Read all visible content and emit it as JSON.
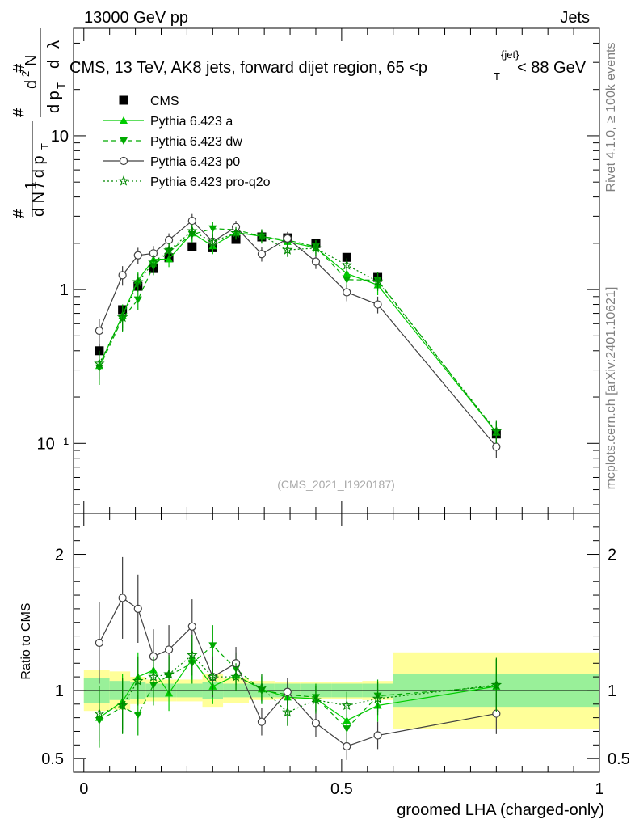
{
  "header": {
    "left": "13000 GeV pp",
    "right": "Jets",
    "side_top": "Rivet 4.1.0, ≥ 100k events",
    "side_bottom": "mcplots.cern.ch [arXiv:2401.10621]",
    "watermark": "(CMS_2021_I1920187)"
  },
  "chart_data": [
    {
      "type": "line",
      "title": "CMS, 13 TeV, AK8 jets, forward dijet region, 65 <p_T^{jet}< 88 GeV",
      "ylabel": "1/(dN/dp_T) d²N/(dp_T dλ)",
      "xlabel": "groomed LHA (charged-only)",
      "yscale": "log",
      "ylim": [
        0.035,
        50
      ],
      "xlim": [
        -0.02,
        1.0
      ],
      "ytick_labels": [
        "10⁻¹",
        "1",
        "10"
      ],
      "x": [
        0.03,
        0.075,
        0.105,
        0.135,
        0.165,
        0.21,
        0.25,
        0.295,
        0.345,
        0.395,
        0.45,
        0.51,
        0.57,
        0.8
      ],
      "series": [
        {
          "name": "CMS",
          "marker": "filled-square",
          "color": "#000000",
          "values": [
            0.4,
            0.74,
            1.05,
            1.37,
            1.61,
            1.9,
            1.87,
            2.12,
            2.2,
            2.17,
            1.99,
            1.62,
            1.2,
            0.115
          ],
          "errors": [
            0.04,
            0.06,
            0.08,
            0.1,
            0.1,
            0.12,
            0.12,
            0.12,
            0.12,
            0.12,
            0.12,
            0.1,
            0.1,
            0.01
          ]
        },
        {
          "name": "Pythia 6.423 a",
          "marker": "triangle-up",
          "color": "#00cc00",
          "linestyle": "solid",
          "values": [
            0.32,
            0.68,
            1.15,
            1.57,
            1.58,
            2.33,
            1.92,
            2.35,
            2.22,
            2.05,
            1.87,
            1.27,
            1.07,
            0.118
          ],
          "errors": [
            0.07,
            0.12,
            0.15,
            0.18,
            0.18,
            0.25,
            0.22,
            0.22,
            0.22,
            0.2,
            0.2,
            0.15,
            0.15,
            0.02
          ]
        },
        {
          "name": "Pythia 6.423 dw",
          "marker": "triangle-down",
          "color": "#00aa00",
          "linestyle": "dashed",
          "values": [
            0.31,
            0.65,
            0.86,
            1.42,
            1.78,
            2.28,
            2.49,
            2.45,
            2.21,
            2.1,
            1.9,
            1.16,
            1.15,
            0.118
          ],
          "errors": [
            0.07,
            0.12,
            0.12,
            0.18,
            0.2,
            0.25,
            0.25,
            0.25,
            0.22,
            0.2,
            0.2,
            0.15,
            0.15,
            0.02
          ]
        },
        {
          "name": "Pythia 6.423 p0",
          "marker": "open-circle",
          "color": "#404040",
          "linestyle": "solid",
          "values": [
            0.54,
            1.24,
            1.67,
            1.72,
            2.1,
            2.8,
            2.05,
            2.55,
            1.7,
            2.15,
            1.52,
            0.96,
            0.8,
            0.095
          ],
          "errors": [
            0.1,
            0.18,
            0.2,
            0.2,
            0.22,
            0.3,
            0.22,
            0.25,
            0.18,
            0.22,
            0.16,
            0.12,
            0.1,
            0.015
          ]
        },
        {
          "name": "Pythia 6.423 pro-q2o",
          "marker": "star",
          "color": "#008800",
          "linestyle": "dotted",
          "values": [
            0.33,
            0.66,
            1.12,
            1.5,
            1.8,
            2.4,
            2.05,
            2.33,
            2.25,
            1.81,
            1.86,
            1.44,
            1.13,
            0.12
          ],
          "errors": [
            0.07,
            0.12,
            0.15,
            0.18,
            0.2,
            0.25,
            0.22,
            0.22,
            0.22,
            0.18,
            0.2,
            0.16,
            0.15,
            0.02
          ]
        }
      ]
    },
    {
      "type": "line",
      "title": "",
      "ylabel": "Ratio to CMS",
      "xlabel": "groomed LHA (charged-only)",
      "ylim": [
        0.4,
        2.3
      ],
      "xlim": [
        -0.02,
        1.0
      ],
      "ytick_labels": [
        "0.5",
        "1",
        "2"
      ],
      "xtick_labels": [
        "0",
        "0.5",
        "1"
      ],
      "band_edges": [
        0.0,
        0.05,
        0.09,
        0.12,
        0.15,
        0.18,
        0.23,
        0.27,
        0.32,
        0.37,
        0.42,
        0.48,
        0.54,
        0.6,
        1.0
      ],
      "band_inner": [
        0.09,
        0.07,
        0.06,
        0.05,
        0.05,
        0.05,
        0.06,
        0.05,
        0.05,
        0.05,
        0.05,
        0.05,
        0.05,
        0.12
      ],
      "band_outer": [
        0.15,
        0.14,
        0.1,
        0.08,
        0.08,
        0.08,
        0.12,
        0.09,
        0.07,
        0.06,
        0.06,
        0.06,
        0.07,
        0.28
      ],
      "x": [
        0.03,
        0.075,
        0.105,
        0.135,
        0.165,
        0.21,
        0.25,
        0.295,
        0.345,
        0.395,
        0.45,
        0.51,
        0.57,
        0.8
      ],
      "series": [
        {
          "name": "Pythia 6.423 a",
          "values": [
            0.8,
            0.92,
            1.1,
            1.15,
            0.98,
            1.23,
            1.03,
            1.11,
            1.01,
            0.95,
            0.94,
            0.78,
            0.89,
            1.03
          ],
          "errors": [
            0.2,
            0.2,
            0.18,
            0.15,
            0.13,
            0.15,
            0.13,
            0.1,
            0.1,
            0.1,
            0.1,
            0.1,
            0.12,
            0.2
          ]
        },
        {
          "name": "Pythia 6.423 dw",
          "values": [
            0.78,
            0.88,
            0.82,
            1.04,
            1.11,
            1.2,
            1.33,
            1.16,
            1.0,
            0.97,
            0.95,
            0.72,
            0.96,
            1.03
          ],
          "errors": [
            0.2,
            0.2,
            0.15,
            0.15,
            0.14,
            0.15,
            0.15,
            0.12,
            0.1,
            0.1,
            0.1,
            0.1,
            0.12,
            0.2
          ]
        },
        {
          "name": "Pythia 6.423 p0",
          "values": [
            1.35,
            1.68,
            1.6,
            1.25,
            1.3,
            1.47,
            1.1,
            1.2,
            0.77,
            0.99,
            0.76,
            0.59,
            0.67,
            0.83
          ],
          "errors": [
            0.3,
            0.3,
            0.25,
            0.2,
            0.18,
            0.2,
            0.15,
            0.12,
            0.1,
            0.1,
            0.1,
            0.1,
            0.1,
            0.15
          ]
        },
        {
          "name": "Pythia 6.423 pro-q2o",
          "values": [
            0.83,
            0.89,
            1.07,
            1.1,
            1.12,
            1.26,
            1.1,
            1.1,
            1.02,
            0.84,
            0.93,
            0.89,
            0.94,
            1.04
          ],
          "errors": [
            0.2,
            0.2,
            0.18,
            0.15,
            0.14,
            0.15,
            0.13,
            0.1,
            0.1,
            0.1,
            0.1,
            0.1,
            0.12,
            0.2
          ]
        }
      ]
    }
  ]
}
